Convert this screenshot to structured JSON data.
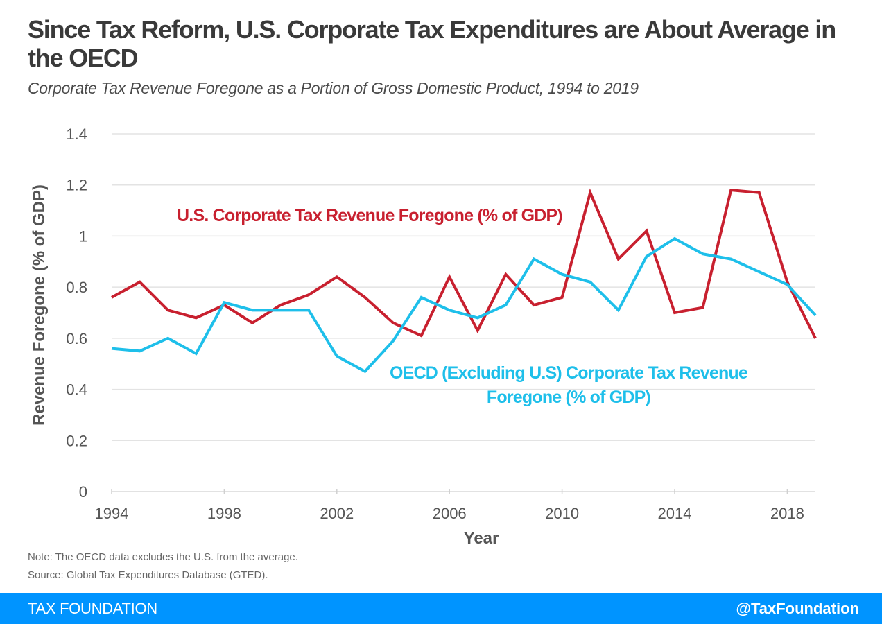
{
  "header": {
    "title": "Since Tax Reform, U.S. Corporate Tax Expenditures are About Average in the OECD",
    "subtitle": "Corporate Tax Revenue Foregone as a Portion of Gross Domestic Product, 1994 to 2019"
  },
  "chart_data": {
    "type": "line",
    "title": "Since Tax Reform, U.S. Corporate Tax Expenditures are About Average in the OECD",
    "subtitle": "Corporate Tax Revenue Foregone as a Portion of Gross Domestic Product, 1994 to 2019",
    "xlabel": "Year",
    "ylabel": "Revenue Foregone (% of GDP)",
    "x": [
      1994,
      1995,
      1996,
      1997,
      1998,
      1999,
      2000,
      2001,
      2002,
      2003,
      2004,
      2005,
      2006,
      2007,
      2008,
      2009,
      2010,
      2011,
      2012,
      2013,
      2014,
      2015,
      2016,
      2017,
      2018,
      2019
    ],
    "xlim": [
      1994,
      2019
    ],
    "ylim": [
      0,
      1.4
    ],
    "x_ticks": [
      "1994",
      "1998",
      "2002",
      "2006",
      "2010",
      "2014",
      "2018"
    ],
    "x_tick_values": [
      1994,
      1998,
      2002,
      2006,
      2010,
      2014,
      2018
    ],
    "y_ticks": [
      "0",
      "0.2",
      "0.4",
      "0.6",
      "0.8",
      "1",
      "1.2",
      "1.4"
    ],
    "y_tick_values": [
      0,
      0.2,
      0.4,
      0.6,
      0.8,
      1.0,
      1.2,
      1.4
    ],
    "grid": "horizontal",
    "series": [
      {
        "name": "U.S. Corporate Tax Revenue Foregone (% of GDP)",
        "color": "#c8202f",
        "label_lines": [
          "U.S. Corporate Tax Revenue Foregone (% of GDP)"
        ],
        "values": [
          0.76,
          0.82,
          0.71,
          0.68,
          0.73,
          0.66,
          0.73,
          0.77,
          0.84,
          0.76,
          0.66,
          0.61,
          0.84,
          0.63,
          0.85,
          0.73,
          0.76,
          1.17,
          0.91,
          1.02,
          0.7,
          0.72,
          1.18,
          1.17,
          0.82,
          0.6
        ]
      },
      {
        "name": "OECD (Excluding U.S) Corporate Tax Revenue Foregone (% of GDP)",
        "color": "#1ebfea",
        "label_lines": [
          "OECD (Excluding U.S) Corporate Tax Revenue",
          "Foregone (% of GDP)"
        ],
        "values": [
          0.56,
          0.55,
          0.6,
          0.54,
          0.74,
          0.71,
          0.71,
          0.71,
          0.53,
          0.47,
          0.59,
          0.76,
          0.71,
          0.68,
          0.73,
          0.91,
          0.85,
          0.82,
          0.71,
          0.92,
          0.99,
          0.93,
          0.91,
          0.86,
          0.81,
          0.69
        ]
      }
    ]
  },
  "notes": {
    "note": "Note: The OECD data excludes the U.S. from the average.",
    "source": "Source: Global Tax Expenditures Database (GTED)."
  },
  "footer": {
    "brand": "TAX FOUNDATION",
    "handle": "@TaxFoundation",
    "color": "#0094ff"
  }
}
